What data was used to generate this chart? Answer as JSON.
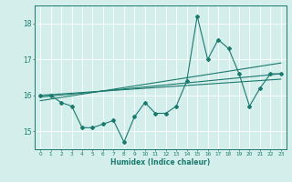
{
  "x": [
    0,
    1,
    2,
    3,
    4,
    5,
    6,
    7,
    8,
    9,
    10,
    11,
    12,
    13,
    14,
    15,
    16,
    17,
    18,
    19,
    20,
    21,
    22,
    23
  ],
  "y_main": [
    16.0,
    16.0,
    15.8,
    15.7,
    15.1,
    15.1,
    15.2,
    15.3,
    14.7,
    15.4,
    15.8,
    15.5,
    15.5,
    15.7,
    16.4,
    18.2,
    17.0,
    17.55,
    17.3,
    16.6,
    15.7,
    16.2,
    16.6,
    16.6
  ],
  "line_color": "#1a7a6e",
  "bg_color": "#d4eeeb",
  "grid_color": "#ffffff",
  "ylabel_vals": [
    15,
    16,
    17,
    18
  ],
  "xlabel_vals": [
    0,
    1,
    2,
    3,
    4,
    5,
    6,
    7,
    8,
    9,
    10,
    11,
    12,
    13,
    14,
    15,
    16,
    17,
    18,
    19,
    20,
    21,
    22,
    23
  ],
  "xlabel": "Humidex (Indice chaleur)",
  "ylim": [
    14.5,
    18.5
  ],
  "xlim": [
    -0.5,
    23.5
  ],
  "trend1_x": [
    0,
    23
  ],
  "trend1_y": [
    15.95,
    16.6
  ],
  "trend2_x": [
    0,
    23
  ],
  "trend2_y": [
    16.0,
    16.45
  ],
  "trend3_x": [
    0,
    23
  ],
  "trend3_y": [
    15.85,
    16.9
  ]
}
